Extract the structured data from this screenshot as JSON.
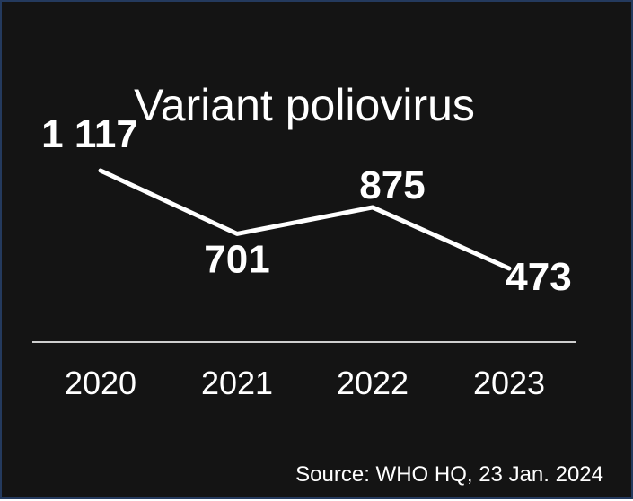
{
  "chart_data": {
    "type": "line",
    "title": "Variant poliovirus",
    "categories": [
      "2020",
      "2021",
      "2022",
      "2023"
    ],
    "values": [
      1117,
      701,
      875,
      473
    ],
    "value_labels": [
      "1 117",
      "701",
      "875",
      "473"
    ],
    "xlabel": "",
    "ylabel": "",
    "ylim": [
      473,
      1117
    ],
    "grid": false,
    "legend": "none",
    "source": "Source: WHO HQ, 23 Jan. 2024",
    "colors": {
      "background": "#141414",
      "line": "#ffffff",
      "axis": "#cfcfcf",
      "text": "#ffffff",
      "border": "#243a5e"
    }
  }
}
